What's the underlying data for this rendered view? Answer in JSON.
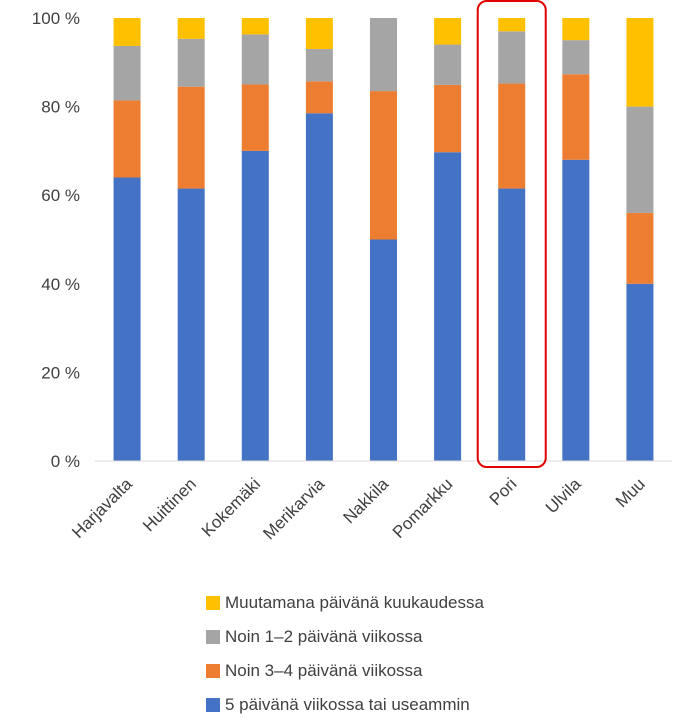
{
  "chart_data": {
    "type": "bar",
    "stacked": true,
    "categories": [
      "Harjavalta",
      "Huittinen",
      "Kokemäki",
      "Merikarvia",
      "Nakkila",
      "Pomarkku",
      "Pori",
      "Ulvila",
      "Muu"
    ],
    "series": [
      {
        "name": "5 päivänä viikossa tai useammin",
        "color": "#4472c4",
        "values": [
          64,
          61.5,
          70,
          78.5,
          50,
          69.7,
          61.5,
          68,
          40
        ]
      },
      {
        "name": "Noin 3–4 päivänä viikossa",
        "color": "#ed7d31",
        "values": [
          17.4,
          23,
          15,
          7.2,
          33.5,
          15.2,
          23.7,
          19.3,
          16
        ]
      },
      {
        "name": "Noin 1–2 päivänä viikossa",
        "color": "#a5a5a5",
        "values": [
          12.3,
          10.8,
          11.3,
          7.3,
          16.5,
          9.1,
          11.8,
          7.7,
          24
        ]
      },
      {
        "name": "Muutamana päivänä kuukaudessa",
        "color": "#ffc000",
        "values": [
          6.3,
          4.7,
          3.7,
          7,
          0,
          6,
          3,
          5,
          20
        ]
      }
    ],
    "yticks": [
      "0 %",
      "20 %",
      "40 %",
      "60 %",
      "80 %",
      "100 %"
    ],
    "ylim": [
      0,
      100
    ],
    "grid": false,
    "legend_position": "bottom",
    "highlight": {
      "category": "Pori",
      "color": "#e00000"
    },
    "title": "",
    "xlabel": "",
    "ylabel": ""
  }
}
